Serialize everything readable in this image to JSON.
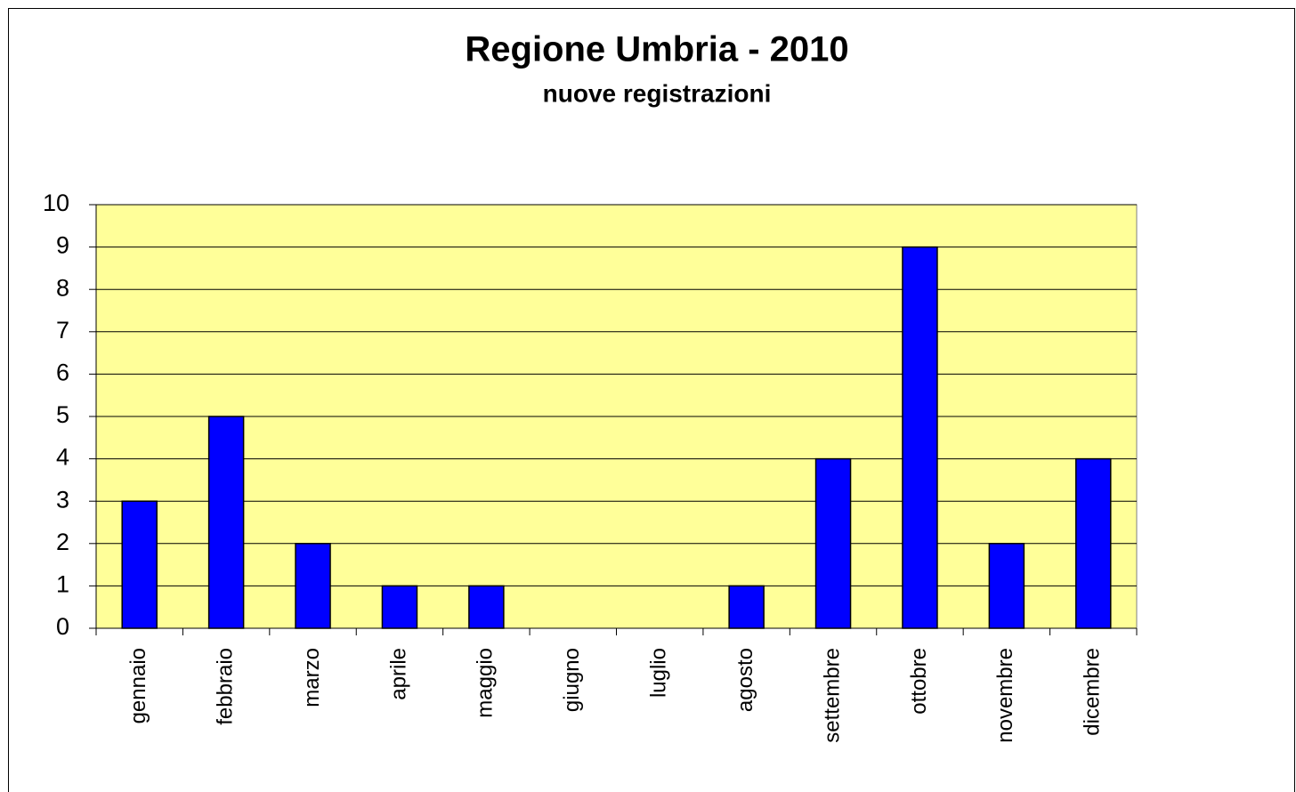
{
  "chart_data": {
    "type": "bar",
    "title": "Regione Umbria - 2010",
    "subtitle": "nuove registrazioni",
    "categories": [
      "gennaio",
      "febbraio",
      "marzo",
      "aprile",
      "maggio",
      "giugno",
      "luglio",
      "agosto",
      "settembre",
      "ottobre",
      "novembre",
      "dicembre"
    ],
    "values": [
      3,
      5,
      2,
      1,
      1,
      0,
      0,
      1,
      4,
      9,
      2,
      4
    ],
    "color": "#0000ff",
    "plot_background": "#ffff99",
    "ylim": [
      0,
      10
    ],
    "yticks": [
      0,
      1,
      2,
      3,
      4,
      5,
      6,
      7,
      8,
      9,
      10
    ],
    "grid": true
  }
}
